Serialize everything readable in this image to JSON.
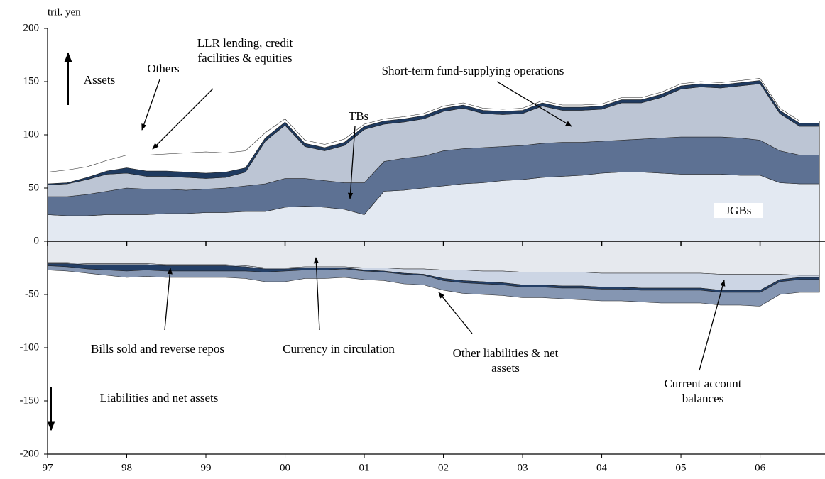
{
  "chart_data": {
    "type": "stacked_area",
    "y_label": "tril. yen",
    "annotations": [
      "Assets",
      "Liabilities and net assets"
    ],
    "x": [
      1997,
      1997.25,
      1997.5,
      1997.75,
      1998,
      1998.25,
      1998.5,
      1998.75,
      1999,
      1999.25,
      1999.5,
      1999.75,
      2000,
      2000.25,
      2000.5,
      2000.75,
      2001,
      2001.25,
      2001.5,
      2001.75,
      2002,
      2002.25,
      2002.5,
      2002.75,
      2003,
      2003.25,
      2003.5,
      2003.75,
      2004,
      2004.25,
      2004.5,
      2004.75,
      2005,
      2005.25,
      2005.5,
      2005.75,
      2006,
      2006.25,
      2006.5,
      2006.75
    ],
    "xlim": [
      1997,
      2006.82
    ],
    "xticks": [
      {
        "value": 1997,
        "label": "97"
      },
      {
        "value": 1998,
        "label": "98"
      },
      {
        "value": 1999,
        "label": "99"
      },
      {
        "value": 2000,
        "label": "00"
      },
      {
        "value": 2001,
        "label": "01"
      },
      {
        "value": 2002,
        "label": "02"
      },
      {
        "value": 2003,
        "label": "03"
      },
      {
        "value": 2004,
        "label": "04"
      },
      {
        "value": 2005,
        "label": "05"
      },
      {
        "value": 2006,
        "label": "06"
      }
    ],
    "ylim": [
      -200,
      200
    ],
    "yticks": [
      -200,
      -150,
      -100,
      -50,
      0,
      50,
      100,
      150,
      200
    ],
    "series": [
      {
        "name": "JGBs",
        "color": "#e3e9f2",
        "values": [
          25,
          24,
          24,
          25,
          25,
          25,
          26,
          26,
          27,
          27,
          28,
          28,
          32,
          33,
          32,
          30,
          25,
          47,
          48,
          50,
          52,
          54,
          55,
          57,
          58,
          60,
          61,
          62,
          64,
          65,
          65,
          64,
          63,
          63,
          63,
          62,
          62,
          55,
          54,
          54
        ]
      },
      {
        "name": "TBs",
        "color": "#5d7193",
        "values": [
          17,
          18,
          20,
          22,
          25,
          24,
          23,
          22,
          22,
          23,
          24,
          26,
          27,
          26,
          25,
          25,
          30,
          28,
          30,
          30,
          33,
          33,
          33,
          32,
          32,
          32,
          32,
          31,
          30,
          30,
          31,
          33,
          35,
          35,
          35,
          35,
          33,
          30,
          27,
          27
        ]
      },
      {
        "name": "Short-term fund-supplying operations",
        "color": "#bcc5d4",
        "values": [
          11,
          12,
          14,
          16,
          14,
          12,
          12,
          12,
          10,
          10,
          13,
          40,
          50,
          30,
          28,
          35,
          50,
          35,
          34,
          35,
          37,
          38,
          32,
          30,
          30,
          35,
          30,
          30,
          30,
          35,
          34,
          38,
          45,
          47,
          46,
          49,
          53,
          35,
          27,
          27
        ]
      },
      {
        "name": "LLR lending, credit facilities & equities",
        "color": "#1f3a5f",
        "values": [
          1,
          1,
          2,
          3,
          5,
          5,
          5,
          5,
          5,
          5,
          4,
          3,
          3,
          3,
          3,
          3,
          3,
          3,
          3,
          3,
          3,
          3,
          3,
          3,
          3,
          3,
          3,
          3,
          3,
          3,
          3,
          3,
          3,
          3,
          3,
          3,
          3,
          3,
          3,
          3
        ]
      },
      {
        "name": "Others",
        "color": "#ffffff",
        "values": [
          11,
          12,
          10,
          10,
          12,
          15,
          16,
          18,
          20,
          18,
          16,
          5,
          3,
          3,
          3,
          3,
          2,
          2,
          2,
          2,
          2,
          2,
          2,
          2,
          2,
          2,
          2,
          2,
          2,
          2,
          2,
          2,
          2,
          2,
          2,
          2,
          2,
          2,
          2,
          2
        ]
      },
      {
        "name": "Currency in circulation",
        "color": "#e6e9ee",
        "values": [
          -20,
          -20,
          -21,
          -21,
          -21,
          -21,
          -22,
          -22,
          -22,
          -22,
          -23,
          -25,
          -25,
          -24,
          -24,
          -24,
          -25,
          -25,
          -26,
          -26,
          -27,
          -27,
          -28,
          -28,
          -29,
          -29,
          -29,
          -29,
          -30,
          -30,
          -30,
          -30,
          -30,
          -30,
          -31,
          -31,
          -31,
          -31,
          -32,
          -32
        ]
      },
      {
        "name": "Current account balances",
        "color": "#ccd5e4",
        "values": [
          -1,
          -1,
          -1,
          -1,
          -1,
          -1,
          -1,
          -1,
          -1,
          -1,
          -1,
          -1,
          -1,
          -1,
          -1,
          -1,
          -2,
          -3,
          -4,
          -5,
          -8,
          -10,
          -10,
          -11,
          -12,
          -12,
          -13,
          -13,
          -13,
          -13,
          -14,
          -14,
          -14,
          -14,
          -15,
          -15,
          -15,
          -5,
          -2,
          -2
        ]
      },
      {
        "name": "Bills sold and reverse repos",
        "color": "#243f66",
        "values": [
          -2,
          -3,
          -4,
          -5,
          -6,
          -5,
          -5,
          -5,
          -5,
          -5,
          -4,
          -3,
          -2,
          -2,
          -2,
          -1,
          -1,
          -1,
          -1,
          -1,
          -2,
          -2,
          -2,
          -2,
          -2,
          -2,
          -2,
          -2,
          -2,
          -2,
          -2,
          -2,
          -2,
          -2,
          -2,
          -2,
          -2,
          -2,
          -2,
          -2
        ]
      },
      {
        "name": "Other liabilities & net assets",
        "color": "#8596b2",
        "values": [
          -4,
          -4,
          -4,
          -5,
          -6,
          -6,
          -6,
          -6,
          -6,
          -6,
          -7,
          -9,
          -10,
          -8,
          -8,
          -8,
          -8,
          -8,
          -9,
          -9,
          -9,
          -10,
          -10,
          -10,
          -10,
          -10,
          -10,
          -11,
          -11,
          -11,
          -11,
          -12,
          -12,
          -12,
          -12,
          -12,
          -13,
          -12,
          -12,
          -12
        ]
      }
    ]
  }
}
